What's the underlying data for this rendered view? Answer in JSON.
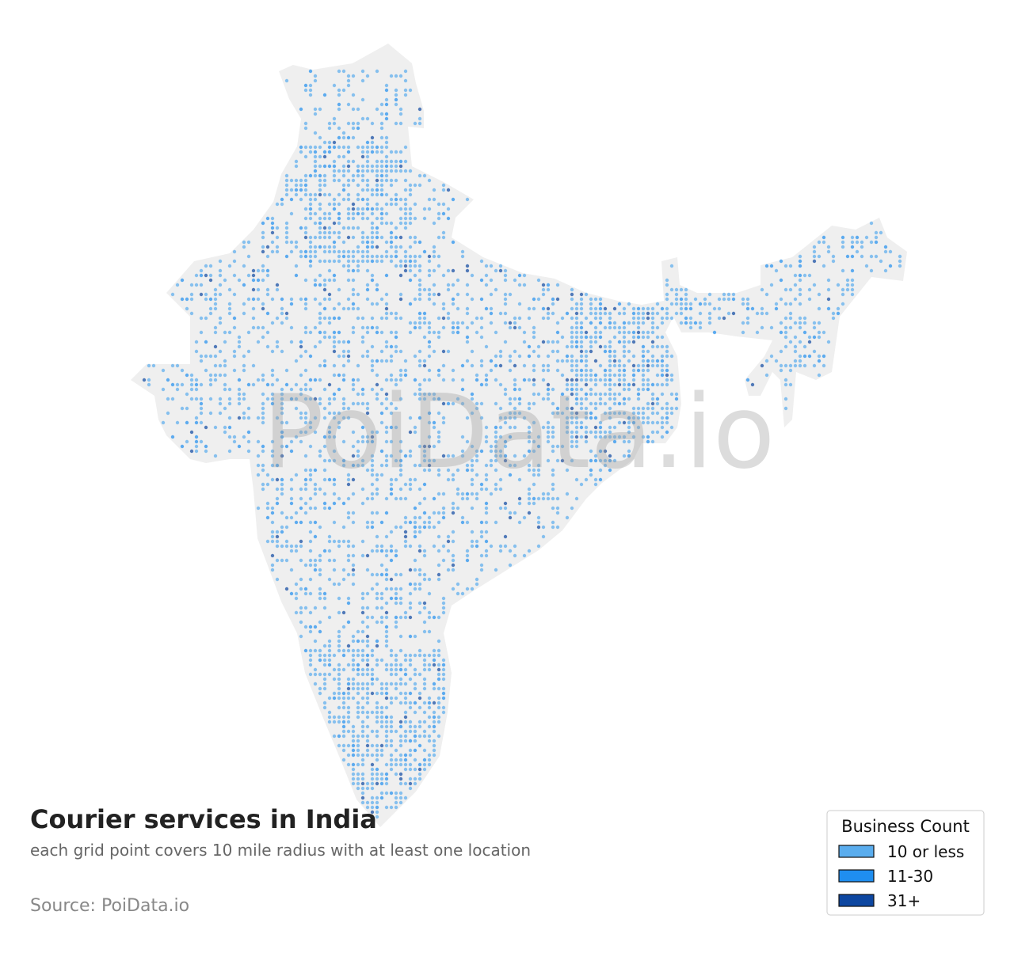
{
  "header": {
    "title": "Courier services in India",
    "subtitle": "each grid point covers 10 mile radius with at least one location",
    "source": "Source: PoiData.io"
  },
  "watermark": "PoiData.io",
  "legend": {
    "title": "Business Count",
    "items": [
      {
        "label": "10 or less",
        "color": "#5aadee"
      },
      {
        "label": "11-30",
        "color": "#1f8ef0"
      },
      {
        "label": "31+",
        "color": "#0d47a1"
      }
    ]
  }
}
